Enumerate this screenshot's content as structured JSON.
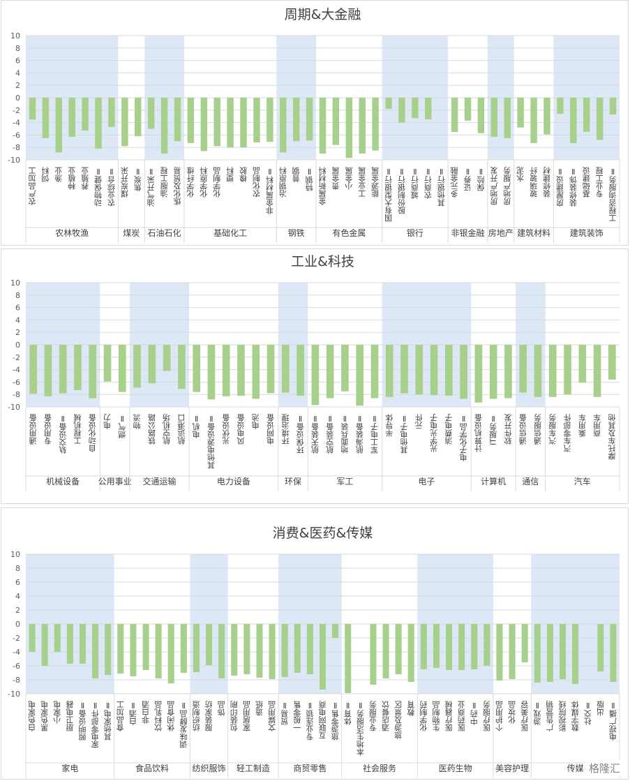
{
  "watermark": "格隆汇",
  "chart_data": [
    {
      "type": "bar",
      "title": "周期&大金融",
      "ylim": [
        -10,
        10
      ],
      "yticks": [
        10,
        8,
        6,
        4,
        2,
        0,
        -2,
        -4,
        -6,
        -8,
        -10
      ],
      "groups": [
        {
          "name": "农林牧渔",
          "shaded": true,
          "categories": [
            "农产品加工",
            "饲料",
            "渔业",
            "种植业",
            "养殖业",
            "动物保健Ⅱ",
            "农业综合Ⅱ"
          ],
          "values": [
            -3.5,
            -6.5,
            -8.8,
            -6.3,
            -5.3,
            -8.2,
            -4.7
          ]
        },
        {
          "name": "煤炭",
          "shaded": false,
          "categories": [
            "煤炭开采",
            "焦炭Ⅱ"
          ],
          "values": [
            -7.8,
            -6.2
          ]
        },
        {
          "name": "石油石化",
          "shaded": true,
          "categories": [
            "油气开采Ⅱ",
            "油服工程",
            "炼化及贸易"
          ],
          "values": [
            -5.0,
            -9.0,
            -7.0
          ]
        },
        {
          "name": "基础化工",
          "shaded": false,
          "categories": [
            "化学纤维",
            "化学原料",
            "化学制品",
            "塑料",
            "橡胶",
            "农化制品",
            "非金属材料Ⅱ"
          ],
          "values": [
            -7.3,
            -8.6,
            -7.8,
            -8.0,
            -8.0,
            -7.2,
            -7.1
          ]
        },
        {
          "name": "钢铁",
          "shaded": true,
          "categories": [
            "冶钢原料",
            "普钢",
            "特钢Ⅱ"
          ],
          "values": [
            -8.8,
            -7.0,
            -6.9
          ]
        },
        {
          "name": "有色金属",
          "shaded": false,
          "categories": [
            "金属新材料",
            "贵金属",
            "小金属",
            "工业金属",
            "能源金属"
          ],
          "values": [
            -9.0,
            -7.6,
            -9.7,
            -9.0,
            -8.5
          ]
        },
        {
          "name": "银行",
          "shaded": true,
          "categories": [
            "国有大型银行Ⅱ",
            "股份制银行Ⅱ",
            "城商行Ⅱ",
            "农商行Ⅱ",
            "其他银行Ⅱ"
          ],
          "values": [
            -1.8,
            -4.0,
            -3.3,
            -3.5,
            0
          ]
        },
        {
          "name": "非银金融",
          "shaded": false,
          "categories": [
            "多元金融",
            "证券Ⅱ",
            "保险Ⅱ"
          ],
          "values": [
            -5.5,
            -3.7,
            -5.7
          ]
        },
        {
          "name": "房地产",
          "shaded": true,
          "categories": [
            "房地产开发",
            "房地产服务"
          ],
          "values": [
            -6.3,
            -6.5
          ]
        },
        {
          "name": "建筑材料",
          "shaded": false,
          "categories": [
            "水泥",
            "玻璃玻纤",
            "装修建材"
          ],
          "values": [
            -4.8,
            -7.3,
            -5.9
          ]
        },
        {
          "name": "建筑装饰",
          "shaded": true,
          "categories": [
            "房屋建设Ⅱ",
            "装修装饰Ⅱ",
            "基础建设",
            "专业工程",
            "工程咨询服务Ⅱ"
          ],
          "values": [
            -2.6,
            -7.3,
            -5.5,
            -6.8,
            -2.7
          ]
        }
      ]
    },
    {
      "type": "bar",
      "title": "工业&科技",
      "ylim": [
        -10,
        10
      ],
      "yticks": [
        10,
        8,
        6,
        4,
        2,
        0,
        -2,
        -4,
        -6,
        -8,
        -10
      ],
      "groups": [
        {
          "name": "机械设备",
          "shaded": true,
          "categories": [
            "通用设备",
            "专用设备",
            "轨交设备Ⅱ",
            "工程机械",
            "自动化设备"
          ],
          "values": [
            -7.9,
            -8.3,
            -7.8,
            -7.3,
            -8.6
          ]
        },
        {
          "name": "公用事业",
          "shaded": false,
          "categories": [
            "电力",
            "燃气Ⅱ"
          ],
          "values": [
            -5.9,
            -7.6
          ]
        },
        {
          "name": "交通运输",
          "shaded": true,
          "categories": [
            "物流",
            "铁路公路",
            "航空机场",
            "航运港口"
          ],
          "values": [
            -6.9,
            -6.2,
            -4.2,
            -7.1
          ]
        },
        {
          "name": "电力设备",
          "shaded": false,
          "categories": [
            "电机Ⅱ",
            "其他电源设备Ⅱ",
            "光伏设备",
            "风电设备",
            "电池",
            "电网设备"
          ],
          "values": [
            -7.6,
            -8.8,
            -8.3,
            -8.2,
            -8.7,
            -7.8
          ]
        },
        {
          "name": "环保",
          "shaded": true,
          "categories": [
            "环境治理",
            "环保设备Ⅱ"
          ],
          "values": [
            -7.7,
            -8.2
          ]
        },
        {
          "name": "军工",
          "shaded": false,
          "categories": [
            "航天装备Ⅱ",
            "航空装备Ⅱ",
            "地面兵装Ⅱ",
            "航海装备Ⅱ",
            "军工电子Ⅱ"
          ],
          "values": [
            -9.7,
            -8.6,
            -7.5,
            -9.8,
            -8.6
          ]
        },
        {
          "name": "电子",
          "shaded": true,
          "categories": [
            "半导体",
            "其他电子Ⅱ",
            "元件",
            "光学光电子",
            "消费电子",
            "电子化学品Ⅱ"
          ],
          "values": [
            -8.4,
            -7.8,
            -8.0,
            -8.1,
            -8.2,
            -8.7
          ]
        },
        {
          "name": "计算机",
          "shaded": false,
          "categories": [
            "计算机设备",
            "IT服务Ⅱ",
            "软件开发"
          ],
          "values": [
            -9.3,
            -8.7,
            -8.6
          ]
        },
        {
          "name": "通信",
          "shaded": true,
          "categories": [
            "通信设备",
            "通信服务"
          ],
          "values": [
            -7.7,
            -8.4
          ]
        },
        {
          "name": "汽车",
          "shaded": false,
          "categories": [
            "汽车服务",
            "汽车零部件",
            "乘用车",
            "商用车",
            "摩托车及其他"
          ],
          "values": [
            -8.4,
            -8.0,
            -6.1,
            -8.4,
            -5.6
          ]
        }
      ]
    },
    {
      "type": "bar",
      "title": "消费&医药&传媒",
      "ylim": [
        -10,
        10
      ],
      "yticks": [
        10,
        8,
        6,
        4,
        2,
        0,
        -2,
        -4,
        -6,
        -8,
        -10
      ],
      "groups": [
        {
          "name": "家电",
          "shaded": true,
          "categories": [
            "白色家电",
            "黑色家电",
            "小家电",
            "厨卫电器",
            "照明设备Ⅱ",
            "家电零部件Ⅱ",
            "其他家电Ⅱ"
          ],
          "values": [
            -4.0,
            -6.0,
            -4.0,
            -5.7,
            -5.7,
            -7.8,
            -7.3
          ]
        },
        {
          "name": "食品饮料",
          "shaded": false,
          "categories": [
            "食品加工",
            "白酒Ⅱ",
            "非白酒",
            "饮料乳品",
            "休闲食品",
            "调味发酵品Ⅱ"
          ],
          "values": [
            -7.1,
            -7.5,
            -6.6,
            -7.8,
            -8.5,
            -7.0
          ]
        },
        {
          "name": "纺织服饰",
          "shaded": true,
          "categories": [
            "纺织制造",
            "服装家纺",
            "饰品"
          ],
          "values": [
            -6.9,
            -5.9,
            -7.8
          ]
        },
        {
          "name": "轻工制造",
          "shaded": false,
          "categories": [
            "包装印刷",
            "家居用品",
            "造纸",
            "文娱用品"
          ],
          "values": [
            -7.4,
            -7.2,
            -7.7,
            -7.9
          ]
        },
        {
          "name": "商贸零售",
          "shaded": true,
          "categories": [
            "贸易Ⅱ",
            "一般零售",
            "专业连锁Ⅱ",
            "互联网电商",
            "旅游零售Ⅱ"
          ],
          "values": [
            -7.6,
            -7.0,
            -7.2,
            -9.4,
            -2.0
          ]
        },
        {
          "name": "社会服务",
          "shaded": false,
          "categories": [
            "体育Ⅱ",
            "本地生活服务Ⅱ",
            "专业服务",
            "酒店餐饮",
            "旅游及景区",
            "教育"
          ],
          "values": [
            -9.9,
            0,
            -8.7,
            -7.8,
            -7.2,
            -8.3
          ]
        },
        {
          "name": "医药生物",
          "shaded": true,
          "categories": [
            "化学制药",
            "生物制品",
            "医疗器械",
            "医药商业",
            "中药Ⅱ",
            "医疗服务"
          ],
          "values": [
            -6.5,
            -6.3,
            -6.6,
            -6.6,
            -6.5,
            -6.0
          ]
        },
        {
          "name": "美容护理",
          "shaded": false,
          "categories": [
            "个护用品",
            "化妆品",
            "医疗美容"
          ],
          "values": [
            -8.1,
            -7.9,
            -5.5
          ]
        },
        {
          "name": "传媒",
          "shaded": true,
          "categories": [
            "游戏Ⅱ",
            "广告营销",
            "影视院线",
            "数字媒体",
            "社交Ⅱ",
            "出版",
            "电视广播Ⅱ"
          ],
          "values": [
            -8.4,
            -8.3,
            -7.9,
            -8.6,
            0,
            -6.8,
            -8.3
          ]
        }
      ]
    }
  ]
}
